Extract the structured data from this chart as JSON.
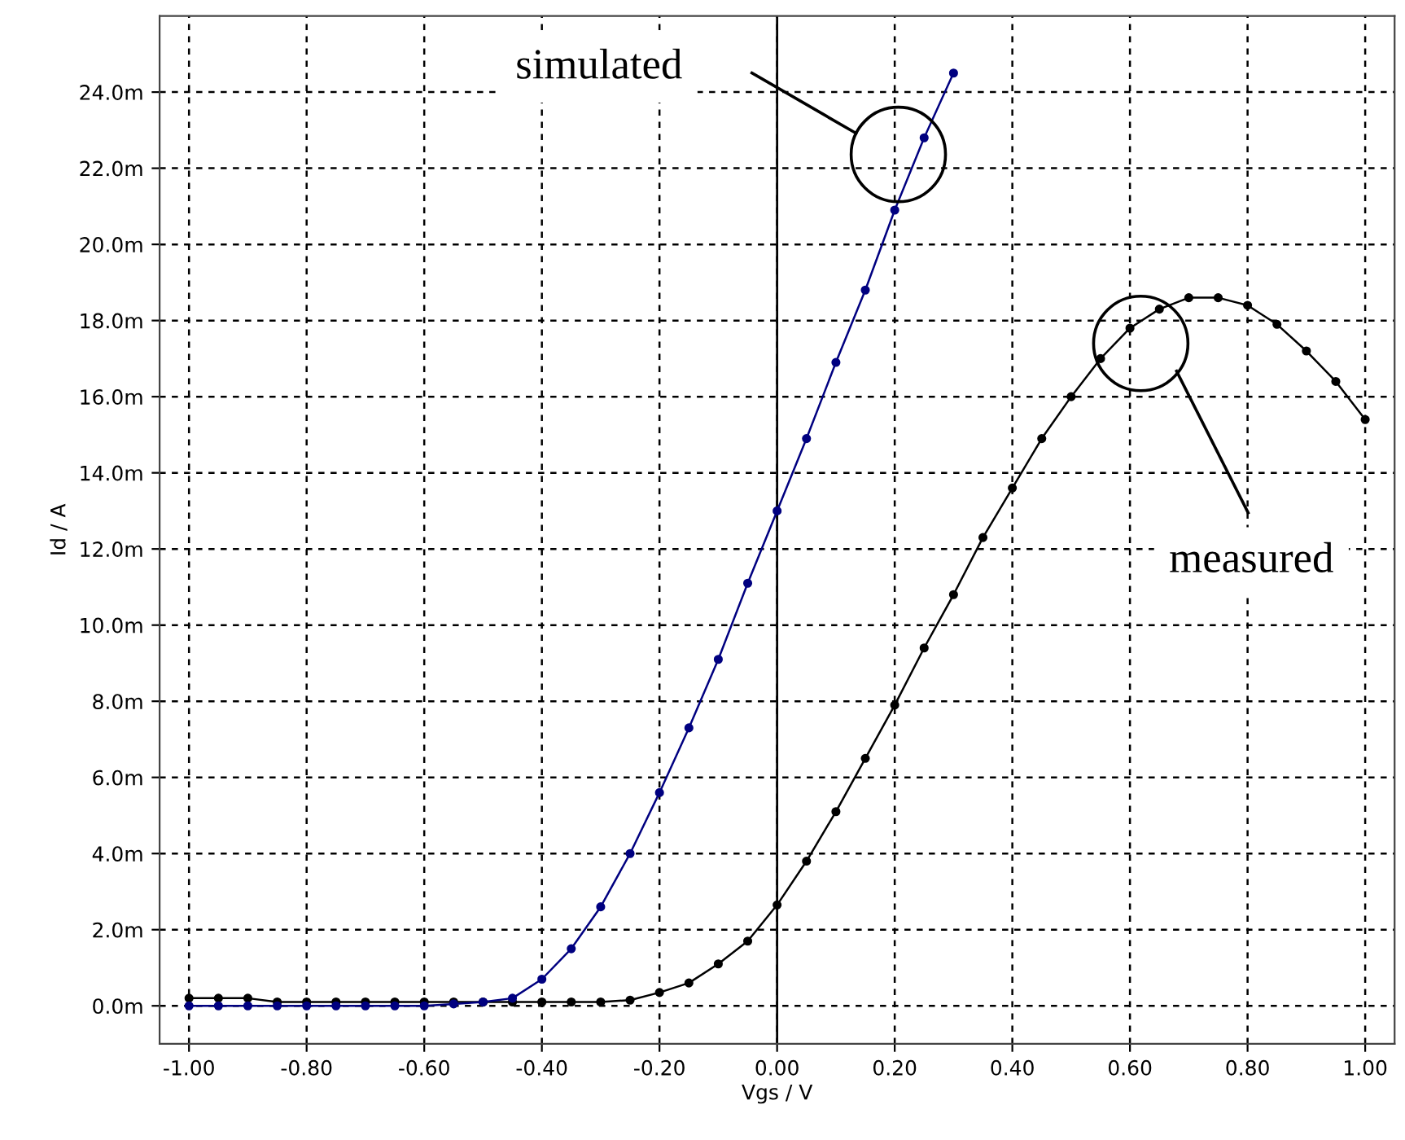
{
  "chart_data": {
    "type": "line",
    "xlabel": "Vgs / V",
    "ylabel": "Id / A",
    "series": [
      {
        "color": "#000080",
        "x": [
          -1.0,
          -0.95,
          -0.9,
          -0.85,
          -0.8,
          -0.75,
          -0.7,
          -0.65,
          -0.6,
          -0.55,
          -0.5,
          -0.45,
          -0.4,
          -0.35,
          -0.3,
          -0.25,
          -0.2,
          -0.15,
          -0.1,
          -0.05,
          0.0,
          0.05,
          0.1,
          0.15,
          0.2,
          0.25,
          0.3
        ],
        "values": [
          0.0,
          0.0,
          0.0,
          0.0,
          0.0,
          0.0,
          0.0,
          0.0,
          0.0,
          0.05,
          0.1,
          0.2,
          0.7,
          1.5,
          2.6,
          4.0,
          5.6,
          7.3,
          9.1,
          11.1,
          13.0,
          14.9,
          16.9,
          18.8,
          20.9,
          22.8,
          24.5
        ]
      },
      {
        "color": "#000000",
        "x": [
          -1.0,
          -0.95,
          -0.9,
          -0.85,
          -0.8,
          -0.75,
          -0.7,
          -0.65,
          -0.6,
          -0.55,
          -0.5,
          -0.45,
          -0.4,
          -0.35,
          -0.3,
          -0.25,
          -0.2,
          -0.15,
          -0.1,
          -0.05,
          0.0,
          0.05,
          0.1,
          0.15,
          0.2,
          0.25,
          0.3,
          0.35,
          0.4,
          0.45,
          0.5,
          0.55,
          0.6,
          0.65,
          0.7,
          0.75,
          0.8,
          0.85,
          0.9,
          0.95,
          1.0
        ],
        "values": [
          0.2,
          0.2,
          0.2,
          0.1,
          0.1,
          0.1,
          0.1,
          0.1,
          0.1,
          0.1,
          0.1,
          0.1,
          0.1,
          0.1,
          0.1,
          0.15,
          0.35,
          0.6,
          1.1,
          1.7,
          2.65,
          3.8,
          5.1,
          6.5,
          7.9,
          9.4,
          10.8,
          12.3,
          13.6,
          14.9,
          16.0,
          17.0,
          17.8,
          18.3,
          18.6,
          18.6,
          18.4,
          17.9,
          17.2,
          16.4,
          15.4
        ]
      }
    ],
    "marker": "circle",
    "line_style": "solid",
    "xlim": [
      -1.05,
      1.05
    ],
    "xticks": [
      {
        "value": -1.0,
        "label": "-1.00"
      },
      {
        "value": -0.8,
        "label": "-0.80"
      },
      {
        "value": -0.6,
        "label": "-0.60"
      },
      {
        "value": -0.4,
        "label": "-0.40"
      },
      {
        "value": -0.2,
        "label": "-0.20"
      },
      {
        "value": 0.0,
        "label": "0.00"
      },
      {
        "value": 0.2,
        "label": "0.20"
      },
      {
        "value": 0.4,
        "label": "0.40"
      },
      {
        "value": 0.6,
        "label": "0.60"
      },
      {
        "value": 0.8,
        "label": "0.80"
      },
      {
        "value": 1.0,
        "label": "1.00"
      }
    ],
    "ylim": [
      -1.0,
      26.0
    ],
    "yticks": [
      {
        "value": 0,
        "label": "0.0m"
      },
      {
        "value": 2,
        "label": "2.0m"
      },
      {
        "value": 4,
        "label": "4.0m"
      },
      {
        "value": 6,
        "label": "6.0m"
      },
      {
        "value": 8,
        "label": "8.0m"
      },
      {
        "value": 10,
        "label": "10.0m"
      },
      {
        "value": 12,
        "label": "12.0m"
      },
      {
        "value": 14,
        "label": "14.0m"
      },
      {
        "value": 16,
        "label": "16.0m"
      },
      {
        "value": 18,
        "label": "18.0m"
      },
      {
        "value": 20,
        "label": "20.0m"
      },
      {
        "value": 22,
        "label": "22.0m"
      },
      {
        "value": 24,
        "label": "24.0m"
      }
    ],
    "grid": true,
    "ref_lines": [
      {
        "axis": "x",
        "value": 0.0,
        "color": "#000000",
        "line_style": "solid"
      }
    ],
    "annotations": [
      "simulated",
      "measured"
    ]
  }
}
